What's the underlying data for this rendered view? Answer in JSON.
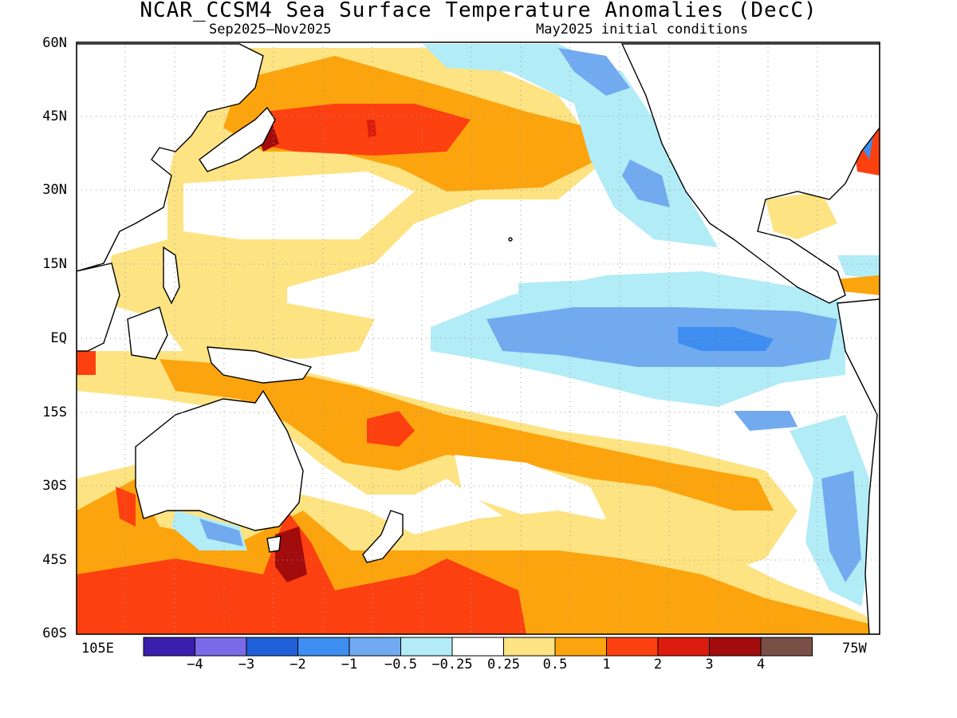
{
  "title": "NCAR_CCSM4 Sea Surface Temperature Anomalies (DecC)",
  "subtitle_left": "Sep2025–Nov2025",
  "subtitle_right": "May2025 initial conditions",
  "lat_labels": [
    "60N",
    "45N",
    "30N",
    "15N",
    "EQ",
    "15S",
    "30S",
    "45S",
    "60S"
  ],
  "lon_labels": {
    "left": "105E",
    "right": "75W"
  },
  "colorbar": {
    "colors": [
      "#3a1fae",
      "#7b6ae8",
      "#1f5fd8",
      "#3d8ef0",
      "#72aaf0",
      "#b2ecf6",
      "#ffffff",
      "#fde382",
      "#fca40e",
      "#fd4010",
      "#dc1c0c",
      "#a20c0c",
      "#7a5046"
    ],
    "labels": [
      "−4",
      "−3",
      "−2",
      "−1",
      "−0.5",
      "−0.25",
      "0.25",
      "0.5",
      "1",
      "2",
      "3",
      "4"
    ]
  },
  "palette": {
    "land": "#ffffff",
    "coast": "#000000",
    "grid": "#9a9a9a"
  }
}
